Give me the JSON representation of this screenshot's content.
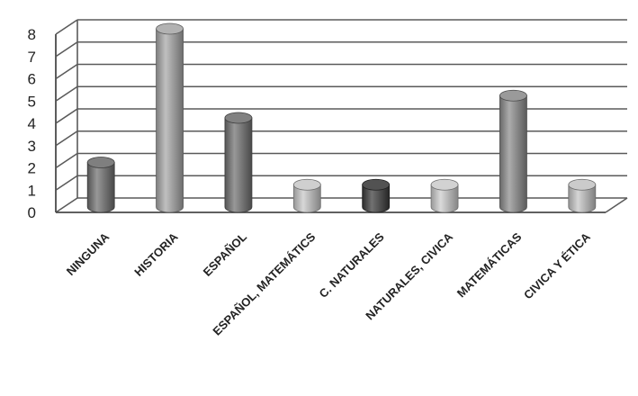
{
  "chart_data": {
    "type": "bar",
    "style": "3d-cylinder",
    "categories": [
      "NINGUNA",
      "HISTORIA",
      "ESPAÑOL",
      "ESPAÑOL, MATEMÁTICS",
      "C. NATURALES",
      "NATURALES, CIVICA",
      "MATEMÁTICAS",
      "CIVICA Y ÉTICA"
    ],
    "values": [
      2,
      8,
      4,
      1,
      1,
      1,
      5,
      1
    ],
    "bar_colors": [
      "#6e6e6e",
      "#a8a8a8",
      "#707070",
      "#c8c8c8",
      "#3a3a3a",
      "#cccccc",
      "#8c8c8c",
      "#c4c4c4"
    ],
    "ylim": [
      0,
      8
    ],
    "yticks": [
      "0",
      "1",
      "2",
      "3",
      "4",
      "5",
      "6",
      "7",
      "8"
    ],
    "grid": true,
    "legend": "none",
    "title": "",
    "xlabel": "",
    "ylabel": ""
  }
}
